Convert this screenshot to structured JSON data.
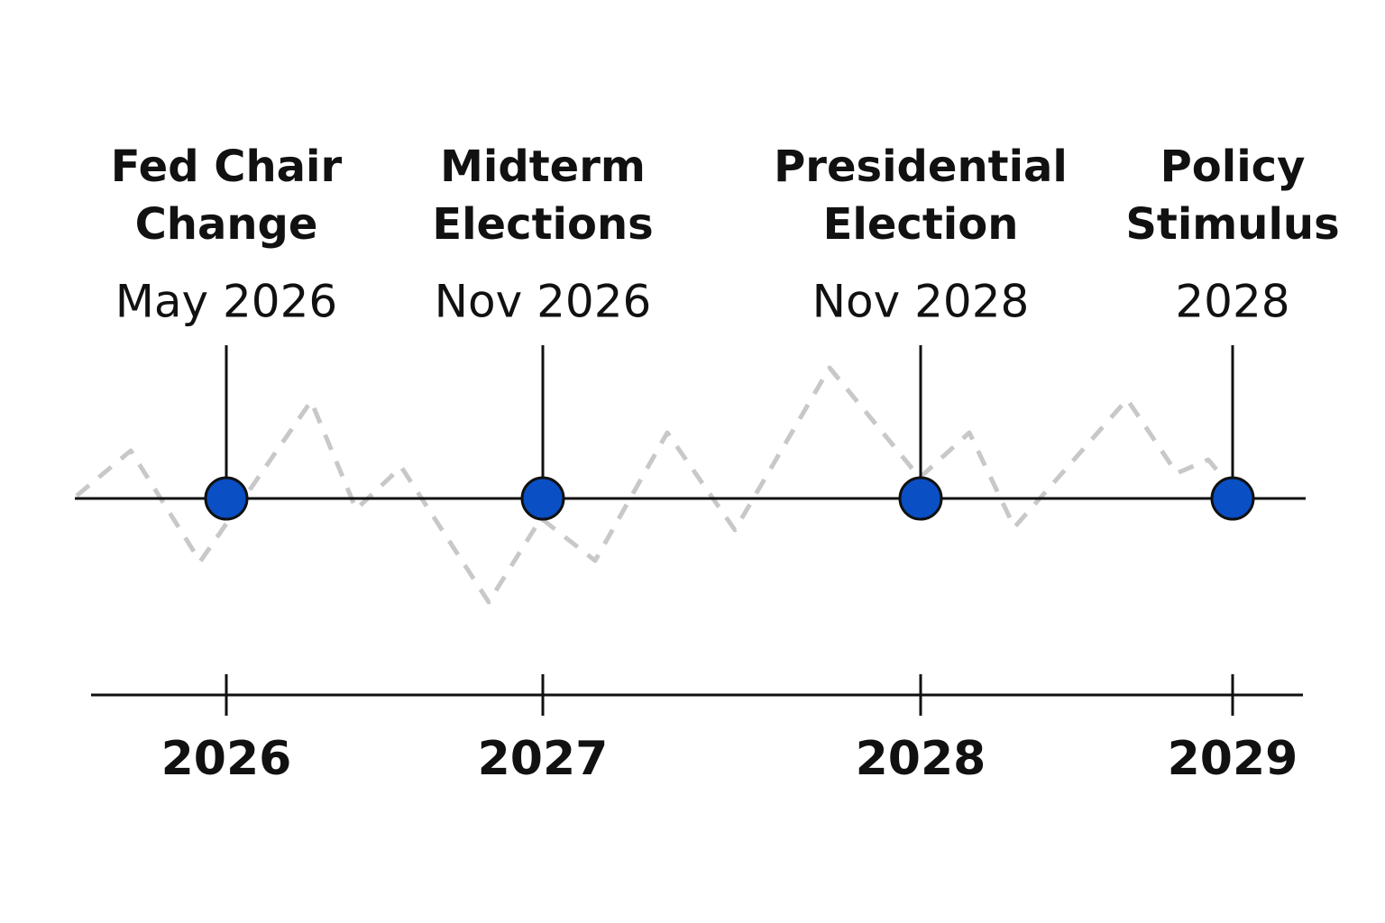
{
  "events": [
    {
      "title_lines": [
        "Fed Chair",
        "Change"
      ],
      "date": "May 2026"
    },
    {
      "title_lines": [
        "Midterm",
        "Elections"
      ],
      "date": "Nov 2026"
    },
    {
      "title_lines": [
        "Presidential",
        "Election"
      ],
      "date": "Nov 2028"
    },
    {
      "title_lines": [
        "Policy",
        "Stimulus"
      ],
      "date": "2028"
    }
  ],
  "axis": {
    "labels": [
      "2026",
      "2027",
      "2028",
      "2029"
    ]
  }
}
